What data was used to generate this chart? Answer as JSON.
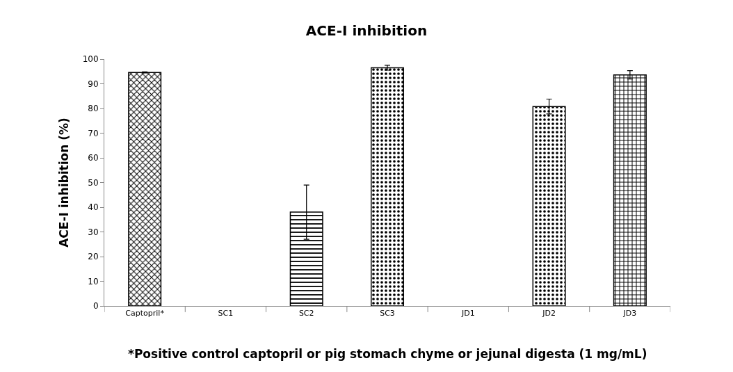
{
  "chart_data": {
    "type": "bar",
    "title": "ACE-I inhibition",
    "ylabel": "ACE-I inhibition (%)",
    "categories": [
      "Captopril*",
      "SC1",
      "SC2",
      "SC3",
      "JD1",
      "JD2",
      "JD3"
    ],
    "values": [
      94.6,
      null,
      38,
      96.5,
      null,
      80.8,
      93.6
    ],
    "errors": [
      0.2,
      null,
      11,
      1,
      null,
      3,
      1.7
    ],
    "color": "#000000",
    "ylim": [
      0,
      100
    ],
    "yticks": [
      0,
      10,
      20,
      30,
      40,
      50,
      60,
      70,
      80,
      90,
      100
    ],
    "annotations": [
      "*Positive control captopril or pig stomach chyme or jejunal digesta (1 mg/mL)"
    ]
  }
}
